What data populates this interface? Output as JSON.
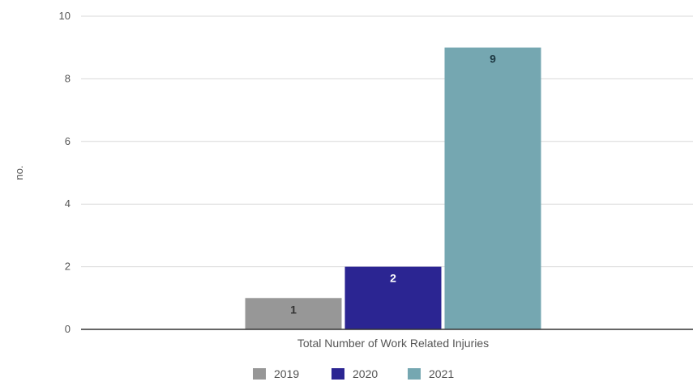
{
  "chart_data": {
    "type": "bar",
    "title": "",
    "xlabel": "",
    "ylabel": "no.",
    "ylim": [
      0,
      10
    ],
    "yticks": [
      0,
      2,
      4,
      6,
      8,
      10
    ],
    "grid": true,
    "categories": [
      "Total Number of Work Related Injuries"
    ],
    "series": [
      {
        "name": "2019",
        "color": "#979797",
        "values": [
          1
        ],
        "label_color": "#333333"
      },
      {
        "name": "2020",
        "color": "#2b2592",
        "values": [
          2
        ],
        "label_color": "#ffffff"
      },
      {
        "name": "2021",
        "color": "#75a7b1",
        "values": [
          9
        ],
        "label_color": "#1f3a44"
      }
    ],
    "legend_position": "bottom"
  }
}
